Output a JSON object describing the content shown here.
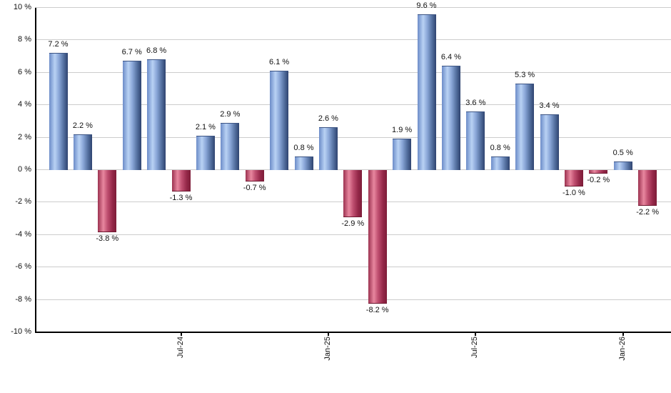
{
  "chart_data": {
    "type": "bar",
    "title": "",
    "values": [
      7.2,
      2.2,
      -3.8,
      6.7,
      6.8,
      -1.3,
      2.1,
      2.9,
      -0.7,
      6.1,
      0.8,
      2.6,
      -2.9,
      -8.2,
      1.9,
      9.6,
      6.4,
      3.6,
      0.8,
      5.3,
      3.4,
      -1.0,
      -0.2,
      0.5,
      -2.2
    ],
    "bar_labels": [
      "7.2 %",
      "2.2 %",
      "-3.8 %",
      "6.7 %",
      "6.8 %",
      "-1.3 %",
      "2.1 %",
      "2.9 %",
      "-0.7 %",
      "6.1 %",
      "0.8 %",
      "2.6 %",
      "-2.9 %",
      "-8.2 %",
      "1.9 %",
      "9.6 %",
      "6.4 %",
      "3.6 %",
      "0.8 %",
      "5.3 %",
      "3.4 %",
      "-1.0 %",
      "-0.2 %",
      "0.5 %",
      "-2.2 %"
    ],
    "y_axis": {
      "ylim": [
        -10,
        10
      ],
      "ticks": [
        10,
        8,
        6,
        4,
        2,
        0,
        -2,
        -4,
        -6,
        -8,
        -10
      ],
      "tick_labels": [
        "10 %",
        "8 %",
        "6 %",
        "4 %",
        "2 %",
        "0 %",
        "-2 %",
        "-4 %",
        "-6 %",
        "-8 %",
        "-10 %"
      ]
    },
    "x_axis": {
      "ticks": [
        {
          "label": "Jul-24",
          "bar_index": 5
        },
        {
          "label": "Jan-25",
          "bar_index": 11
        },
        {
          "label": "Jul-25",
          "bar_index": 17
        },
        {
          "label": "Jan-26",
          "bar_index": 23
        }
      ]
    },
    "grid": true,
    "legend": false,
    "colors": {
      "positive_gradient": [
        "#6C8CC8",
        "#B9D2F4",
        "#8BA7D8",
        "#53709F",
        "#2F4370"
      ],
      "negative_gradient": [
        "#9C3250",
        "#E8879F",
        "#C05071",
        "#96294A",
        "#7D1C38"
      ],
      "gridline": "#CCCCCC",
      "axis": "#000000",
      "label": "#111111",
      "background": "#FFFFFF"
    }
  }
}
